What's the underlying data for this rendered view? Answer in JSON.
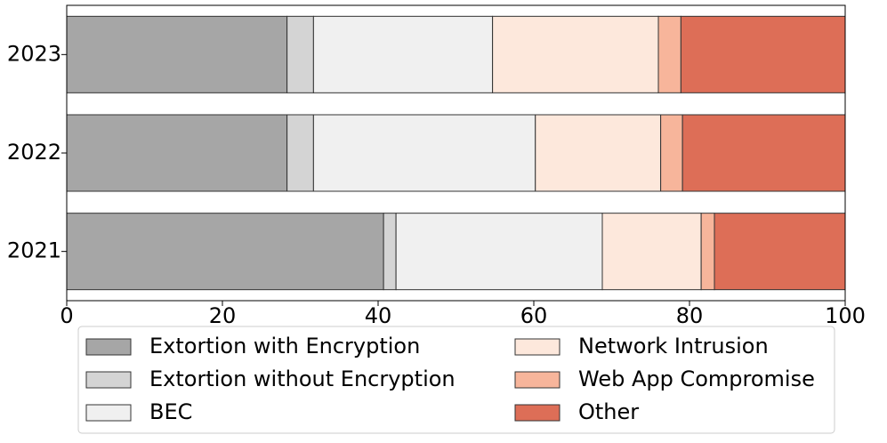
{
  "chart_data": {
    "type": "stacked-barh",
    "categories": [
      "2021",
      "2022",
      "2023"
    ],
    "series": [
      {
        "name": "Extortion with Encryption",
        "color": "#a6a6a6",
        "values": [
          40.7,
          28.3,
          28.3
        ]
      },
      {
        "name": "Extortion without Encryption",
        "color": "#d4d4d4",
        "values": [
          1.6,
          3.4,
          3.4
        ]
      },
      {
        "name": "BEC",
        "color": "#f0f0f0",
        "values": [
          26.5,
          28.5,
          23.0
        ]
      },
      {
        "name": "Network Intrusion",
        "color": "#fde8dc",
        "values": [
          12.7,
          16.1,
          21.3
        ]
      },
      {
        "name": "Web App Compromise",
        "color": "#f7b59b",
        "values": [
          1.7,
          2.8,
          2.9
        ]
      },
      {
        "name": "Other",
        "color": "#dd6e57",
        "values": [
          16.8,
          20.9,
          21.1
        ]
      }
    ],
    "xlim": [
      0,
      100
    ],
    "xticks": [
      0,
      20,
      40,
      60,
      80,
      100
    ]
  }
}
